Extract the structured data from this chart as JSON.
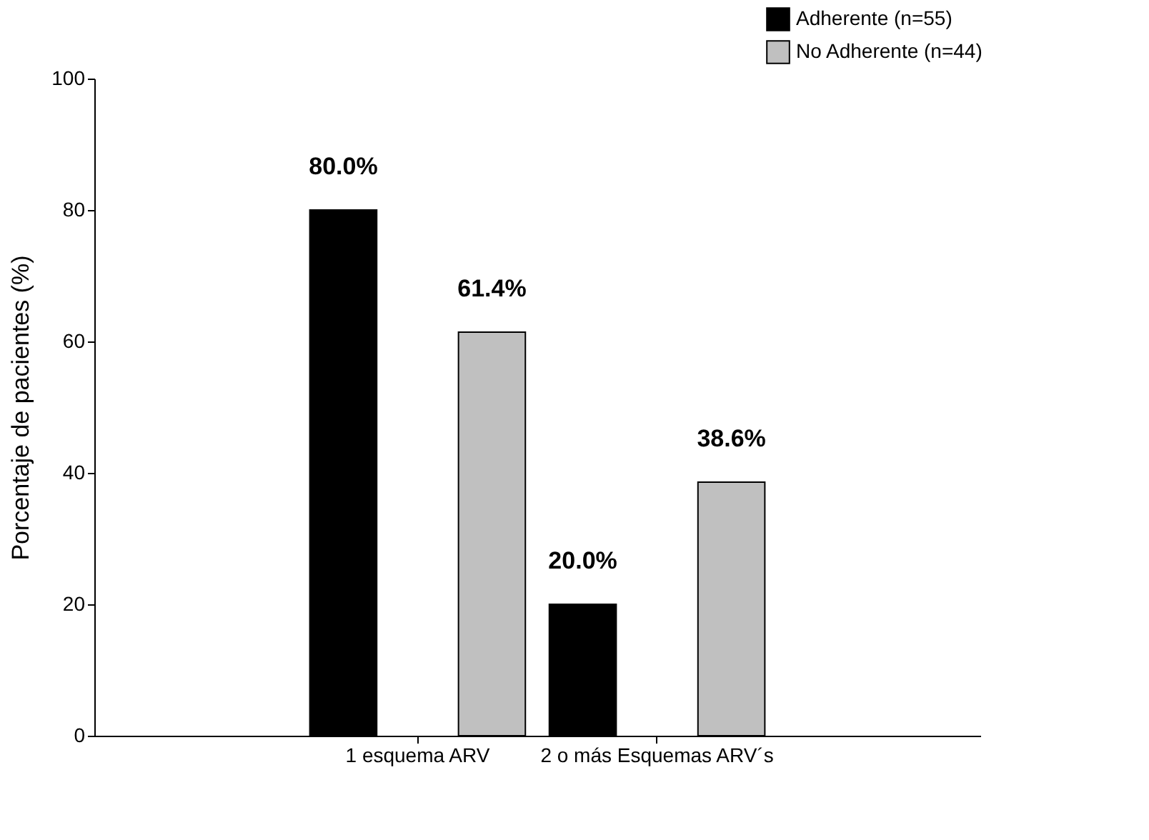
{
  "chart_data": {
    "type": "bar",
    "ylabel": "Porcentaje de pacientes (%)",
    "categories": [
      "1 esquema ARV",
      "2 o más  Esquemas ARV´s"
    ],
    "series": [
      {
        "name": "Adherente (n=55)",
        "color": "#000000",
        "values": [
          80.0,
          20.0
        ],
        "value_labels": [
          "80.0%",
          "20.0%"
        ]
      },
      {
        "name": " No Adherente (n=44)",
        "color": "#c0c0c0",
        "values": [
          61.4,
          38.6
        ],
        "value_labels": [
          "61.4%",
          "38.6%"
        ]
      }
    ],
    "ylim": [
      0,
      100
    ],
    "yticks": [
      0,
      20,
      40,
      60,
      80,
      100
    ],
    "grid": false,
    "legend": "top right"
  }
}
